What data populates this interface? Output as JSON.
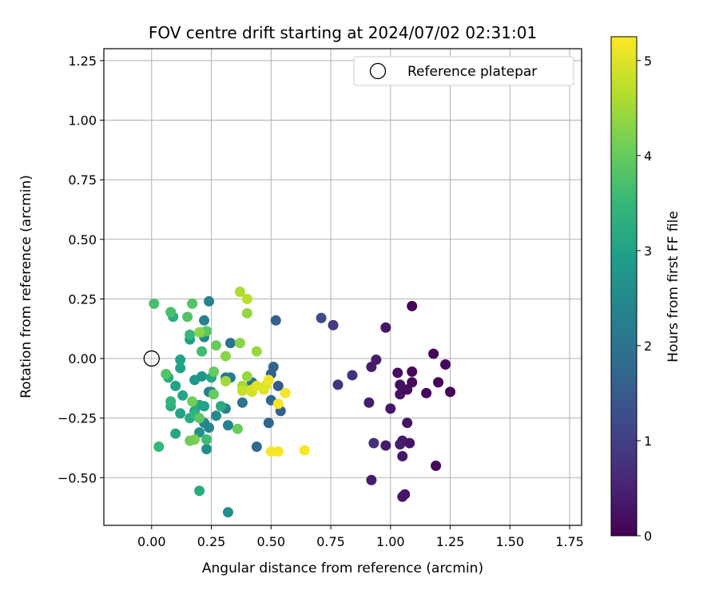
{
  "chart_data": {
    "type": "scatter",
    "title": "FOV centre drift starting at 2024/07/02 02:31:01",
    "xlabel": "Angular distance from reference (arcmin)",
    "ylabel": "Rotation from reference (arcmin)",
    "xlim": [
      -0.2,
      1.8
    ],
    "ylim": [
      -0.7,
      1.3
    ],
    "xticks": [
      "0.00",
      "0.25",
      "0.50",
      "0.75",
      "1.00",
      "1.25",
      "1.50",
      "1.75"
    ],
    "xtick_values": [
      0,
      0.25,
      0.5,
      0.75,
      1.0,
      1.25,
      1.5,
      1.75
    ],
    "yticks": [
      "−0.50",
      "−0.25",
      "0.00",
      "0.25",
      "0.50",
      "0.75",
      "1.00",
      "1.25"
    ],
    "ytick_values": [
      -0.5,
      -0.25,
      0,
      0.25,
      0.5,
      0.75,
      1.0,
      1.25
    ],
    "grid": true,
    "legend": {
      "placement": "top-right",
      "label": "Reference platepar"
    },
    "reference": {
      "x": 0,
      "y": 0
    },
    "colorbar": {
      "label": "Hours from first FF file",
      "range": [
        0,
        5.25
      ],
      "ticks": [
        "0",
        "1",
        "2",
        "3",
        "4",
        "5"
      ],
      "tick_values": [
        0,
        1,
        2,
        3,
        4,
        5
      ],
      "colormap": "viridis"
    },
    "colors": {
      "viridis": [
        "#440154",
        "#482878",
        "#3e4989",
        "#31688e",
        "#26828e",
        "#1f9e89",
        "#35b779",
        "#6ece58",
        "#b5de2b",
        "#fde725"
      ]
    },
    "points": [
      {
        "x": 1.09,
        "y": 0.22,
        "h": 0.05
      },
      {
        "x": 1.18,
        "y": 0.02,
        "h": 0.05
      },
      {
        "x": 1.23,
        "y": -0.025,
        "h": 0.1
      },
      {
        "x": 1.09,
        "y": -0.055,
        "h": 0.1
      },
      {
        "x": 1.2,
        "y": -0.1,
        "h": 0.05
      },
      {
        "x": 1.09,
        "y": -0.1,
        "h": 0.1
      },
      {
        "x": 1.15,
        "y": -0.145,
        "h": 0.05
      },
      {
        "x": 1.25,
        "y": -0.14,
        "h": 0.05
      },
      {
        "x": 1.19,
        "y": -0.45,
        "h": 0.1
      },
      {
        "x": 1.03,
        "y": -0.06,
        "h": 0.2
      },
      {
        "x": 1.04,
        "y": -0.11,
        "h": 0.2
      },
      {
        "x": 1.04,
        "y": -0.15,
        "h": 0.25
      },
      {
        "x": 1.07,
        "y": -0.13,
        "h": 0.2
      },
      {
        "x": 1.07,
        "y": -0.27,
        "h": 0.3
      },
      {
        "x": 1.08,
        "y": -0.355,
        "h": 0.3
      },
      {
        "x": 1.05,
        "y": -0.345,
        "h": 0.35
      },
      {
        "x": 1.04,
        "y": -0.36,
        "h": 0.4
      },
      {
        "x": 1.05,
        "y": -0.41,
        "h": 0.35
      },
      {
        "x": 1.05,
        "y": -0.58,
        "h": 0.3
      },
      {
        "x": 1.06,
        "y": -0.57,
        "h": 0.3
      },
      {
        "x": 0.98,
        "y": 0.13,
        "h": 0.3
      },
      {
        "x": 0.94,
        "y": -0.005,
        "h": 0.4
      },
      {
        "x": 0.92,
        "y": -0.035,
        "h": 0.4
      },
      {
        "x": 1.0,
        "y": -0.21,
        "h": 0.35
      },
      {
        "x": 0.98,
        "y": -0.365,
        "h": 0.4
      },
      {
        "x": 0.93,
        "y": -0.355,
        "h": 0.7
      },
      {
        "x": 0.91,
        "y": -0.185,
        "h": 0.4
      },
      {
        "x": 0.92,
        "y": -0.51,
        "h": 0.4
      },
      {
        "x": 0.84,
        "y": -0.07,
        "h": 0.7
      },
      {
        "x": 0.78,
        "y": -0.11,
        "h": 0.8
      },
      {
        "x": 0.76,
        "y": 0.14,
        "h": 0.9
      },
      {
        "x": 0.71,
        "y": 0.17,
        "h": 1.2
      },
      {
        "x": 0.52,
        "y": 0.16,
        "h": 1.6
      },
      {
        "x": 0.51,
        "y": -0.035,
        "h": 1.7
      },
      {
        "x": 0.5,
        "y": -0.065,
        "h": 1.6
      },
      {
        "x": 0.53,
        "y": -0.115,
        "h": 1.5
      },
      {
        "x": 0.5,
        "y": -0.175,
        "h": 1.7
      },
      {
        "x": 0.54,
        "y": -0.22,
        "h": 1.6
      },
      {
        "x": 0.49,
        "y": -0.27,
        "h": 1.7
      },
      {
        "x": 0.44,
        "y": -0.37,
        "h": 1.8
      },
      {
        "x": 0.42,
        "y": -0.1,
        "h": 1.9
      },
      {
        "x": 0.38,
        "y": -0.185,
        "h": 2.0
      },
      {
        "x": 0.33,
        "y": 0.065,
        "h": 2.0
      },
      {
        "x": 0.31,
        "y": -0.08,
        "h": 2.1
      },
      {
        "x": 0.33,
        "y": -0.08,
        "h": 2.2
      },
      {
        "x": 0.31,
        "y": -0.21,
        "h": 2.3
      },
      {
        "x": 0.32,
        "y": -0.28,
        "h": 2.3
      },
      {
        "x": 0.32,
        "y": -0.645,
        "h": 2.6
      },
      {
        "x": 0.24,
        "y": 0.24,
        "h": 2.3
      },
      {
        "x": 0.22,
        "y": 0.16,
        "h": 2.3
      },
      {
        "x": 0.22,
        "y": 0.09,
        "h": 2.5
      },
      {
        "x": 0.24,
        "y": -0.14,
        "h": 2.2
      },
      {
        "x": 0.25,
        "y": -0.14,
        "h": 2.4
      },
      {
        "x": 0.27,
        "y": -0.24,
        "h": 2.5
      },
      {
        "x": 0.22,
        "y": -0.27,
        "h": 2.4
      },
      {
        "x": 0.24,
        "y": -0.29,
        "h": 2.4
      },
      {
        "x": 0.2,
        "y": -0.31,
        "h": 2.6
      },
      {
        "x": 0.23,
        "y": -0.38,
        "h": 2.6
      },
      {
        "x": 0.21,
        "y": -0.075,
        "h": 2.7
      },
      {
        "x": 0.18,
        "y": -0.09,
        "h": 2.8
      },
      {
        "x": 0.16,
        "y": 0.08,
        "h": 2.9
      },
      {
        "x": 0.12,
        "y": -0.005,
        "h": 3.0
      },
      {
        "x": 0.12,
        "y": -0.04,
        "h": 3.0
      },
      {
        "x": 0.1,
        "y": -0.115,
        "h": 3.0
      },
      {
        "x": 0.13,
        "y": -0.155,
        "h": 3.1
      },
      {
        "x": 0.12,
        "y": -0.23,
        "h": 3.0
      },
      {
        "x": 0.16,
        "y": -0.25,
        "h": 3.2
      },
      {
        "x": 0.18,
        "y": -0.22,
        "h": 3.1
      },
      {
        "x": 0.2,
        "y": -0.195,
        "h": 3.1
      },
      {
        "x": 0.22,
        "y": -0.2,
        "h": 3.0
      },
      {
        "x": 0.25,
        "y": -0.08,
        "h": 3.1
      },
      {
        "x": 0.29,
        "y": -0.2,
        "h": 3.2
      },
      {
        "x": 0.07,
        "y": -0.08,
        "h": 3.2
      },
      {
        "x": 0.1,
        "y": -0.315,
        "h": 3.1
      },
      {
        "x": 0.2,
        "y": -0.555,
        "h": 3.2
      },
      {
        "x": 0.09,
        "y": 0.175,
        "h": 3.3
      },
      {
        "x": 0.16,
        "y": 0.1,
        "h": 3.5
      },
      {
        "x": 0.21,
        "y": 0.03,
        "h": 3.6
      },
      {
        "x": 0.18,
        "y": -0.235,
        "h": 3.4
      },
      {
        "x": 0.08,
        "y": -0.2,
        "h": 3.3
      },
      {
        "x": 0.08,
        "y": -0.18,
        "h": 3.4
      },
      {
        "x": 0.03,
        "y": -0.37,
        "h": 3.5
      },
      {
        "x": 0.23,
        "y": -0.34,
        "h": 3.6
      },
      {
        "x": 0.01,
        "y": 0.23,
        "h": 3.7
      },
      {
        "x": 0.08,
        "y": 0.195,
        "h": 3.7
      },
      {
        "x": 0.15,
        "y": 0.175,
        "h": 3.8
      },
      {
        "x": 0.17,
        "y": 0.23,
        "h": 3.8
      },
      {
        "x": 0.21,
        "y": 0.11,
        "h": 3.9
      },
      {
        "x": 0.23,
        "y": 0.115,
        "h": 3.9
      },
      {
        "x": 0.27,
        "y": 0.055,
        "h": 4.0
      },
      {
        "x": 0.26,
        "y": -0.055,
        "h": 4.0
      },
      {
        "x": 0.26,
        "y": -0.15,
        "h": 4.0
      },
      {
        "x": 0.2,
        "y": -0.25,
        "h": 3.9
      },
      {
        "x": 0.06,
        "y": -0.065,
        "h": 3.8
      },
      {
        "x": 0.17,
        "y": -0.18,
        "h": 4.1
      },
      {
        "x": 0.18,
        "y": -0.34,
        "h": 4.2
      },
      {
        "x": 0.16,
        "y": -0.345,
        "h": 4.1
      },
      {
        "x": 0.36,
        "y": -0.295,
        "h": 4.0
      },
      {
        "x": 0.2,
        "y": 0.11,
        "h": 4.3
      },
      {
        "x": 0.31,
        "y": 0.01,
        "h": 4.3
      },
      {
        "x": 0.37,
        "y": 0.065,
        "h": 4.3
      },
      {
        "x": 0.4,
        "y": 0.19,
        "h": 4.4
      },
      {
        "x": 0.44,
        "y": 0.03,
        "h": 4.4
      },
      {
        "x": 0.31,
        "y": -0.095,
        "h": 4.5
      },
      {
        "x": 0.4,
        "y": -0.075,
        "h": 4.4
      },
      {
        "x": 0.38,
        "y": -0.115,
        "h": 4.5
      },
      {
        "x": 0.37,
        "y": 0.28,
        "h": 4.6
      },
      {
        "x": 0.4,
        "y": 0.25,
        "h": 4.7
      },
      {
        "x": 0.38,
        "y": -0.135,
        "h": 4.8
      },
      {
        "x": 0.42,
        "y": -0.13,
        "h": 4.9
      },
      {
        "x": 0.42,
        "y": -0.14,
        "h": 4.9
      },
      {
        "x": 0.44,
        "y": -0.115,
        "h": 5.0
      },
      {
        "x": 0.48,
        "y": -0.11,
        "h": 5.0
      },
      {
        "x": 0.47,
        "y": -0.13,
        "h": 5.0
      },
      {
        "x": 0.49,
        "y": -0.09,
        "h": 5.1
      },
      {
        "x": 0.53,
        "y": -0.19,
        "h": 5.2
      },
      {
        "x": 0.56,
        "y": -0.145,
        "h": 5.2
      },
      {
        "x": 0.5,
        "y": -0.39,
        "h": 5.2
      },
      {
        "x": 0.53,
        "y": -0.39,
        "h": 5.2
      },
      {
        "x": 0.64,
        "y": -0.385,
        "h": 5.2
      }
    ]
  }
}
